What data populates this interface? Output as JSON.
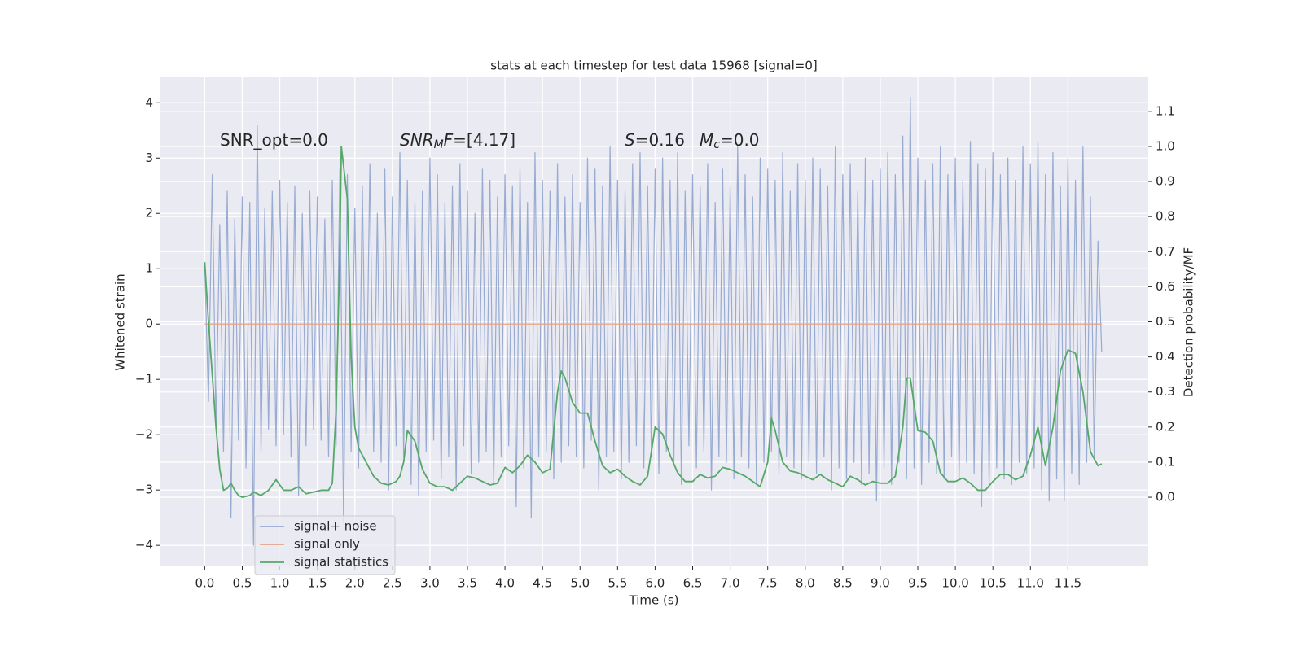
{
  "chart_data": {
    "type": "line",
    "title": "stats at each timestep for test data 15968 [signal=0]",
    "xlabel": "Time (s)",
    "ylabel": "Whitened strain",
    "y2label": "Detection probability/MF",
    "annotations": [
      {
        "parts": [
          {
            "text": "SNR_opt=0.0",
            "italic": false,
            "sub": false
          }
        ]
      },
      {
        "parts": [
          {
            "text": "SNR",
            "italic": true,
            "sub": false
          },
          {
            "text": "M",
            "italic": true,
            "sub": true
          },
          {
            "text": "F",
            "italic": true,
            "sub": false
          },
          {
            "text": "=[4.17]",
            "italic": false,
            "sub": false
          }
        ]
      },
      {
        "parts": [
          {
            "text": "S",
            "italic": true,
            "sub": false
          },
          {
            "text": "=0.16",
            "italic": false,
            "sub": false
          }
        ]
      },
      {
        "parts": [
          {
            "text": "M",
            "italic": true,
            "sub": false
          },
          {
            "text": "c",
            "italic": true,
            "sub": true
          },
          {
            "text": "=0.0",
            "italic": false,
            "sub": false
          }
        ]
      }
    ],
    "xlim": [
      -0.59,
      12.57
    ],
    "ylim": [
      -4.38,
      4.46
    ],
    "y2lim": [
      -0.197,
      1.197
    ],
    "xticks": [
      {
        "value": 0,
        "label": "0.0"
      },
      0.5,
      {
        "value": 1,
        "label": "1.0"
      },
      1.5,
      {
        "value": 2,
        "label": "2.0"
      },
      2.5,
      {
        "value": 3,
        "label": "3.0"
      },
      3.5,
      {
        "value": 4,
        "label": "4.0"
      },
      4.5,
      {
        "value": 5,
        "label": "5.0"
      },
      5.5,
      {
        "value": 6,
        "label": "6.0"
      },
      6.5,
      {
        "value": 7,
        "label": "7.0"
      },
      7.5,
      {
        "value": 8,
        "label": "8.0"
      },
      8.5,
      {
        "value": 9,
        "label": "9.0"
      },
      9.5,
      {
        "value": 10,
        "label": "10.0"
      },
      10.5,
      {
        "value": 11,
        "label": "11.0"
      },
      11.5
    ],
    "yticks": [
      {
        "value": -4,
        "label": "−4"
      },
      {
        "value": -3,
        "label": "−3"
      },
      {
        "value": -2,
        "label": "−2"
      },
      {
        "value": -1,
        "label": "−1"
      },
      0,
      1,
      2,
      3,
      4
    ],
    "y2ticks": [
      {
        "value": 0,
        "label": "0.0"
      },
      0.1,
      0.2,
      0.3,
      0.4,
      0.5,
      0.6,
      0.7,
      0.8,
      0.9,
      {
        "value": 1,
        "label": "1.0"
      },
      1.1
    ],
    "grid": true,
    "legend": "lower left",
    "series": [
      {
        "name": "signal+ noise",
        "color": "#98abd1",
        "x": [
          0,
          0.05,
          0.1,
          0.15,
          0.2,
          0.25,
          0.3,
          0.35,
          0.4,
          0.45,
          0.5,
          0.55,
          0.6,
          0.65,
          0.7,
          0.75,
          0.8,
          0.85,
          0.9,
          0.95,
          1,
          1.05,
          1.1,
          1.15,
          1.2,
          1.25,
          1.3,
          1.35,
          1.4,
          1.45,
          1.5,
          1.55,
          1.6,
          1.65,
          1.7,
          1.75,
          1.8,
          1.85,
          1.9,
          1.95,
          2,
          2.05,
          2.1,
          2.15,
          2.2,
          2.25,
          2.3,
          2.35,
          2.4,
          2.45,
          2.5,
          2.55,
          2.6,
          2.65,
          2.7,
          2.75,
          2.8,
          2.85,
          2.9,
          2.95,
          3,
          3.05,
          3.1,
          3.15,
          3.2,
          3.25,
          3.3,
          3.35,
          3.4,
          3.45,
          3.5,
          3.55,
          3.6,
          3.65,
          3.7,
          3.75,
          3.8,
          3.85,
          3.9,
          3.95,
          4,
          4.05,
          4.1,
          4.15,
          4.2,
          4.25,
          4.3,
          4.35,
          4.4,
          4.45,
          4.5,
          4.55,
          4.6,
          4.65,
          4.7,
          4.75,
          4.8,
          4.85,
          4.9,
          4.95,
          5,
          5.05,
          5.1,
          5.15,
          5.2,
          5.25,
          5.3,
          5.35,
          5.4,
          5.45,
          5.5,
          5.55,
          5.6,
          5.65,
          5.7,
          5.75,
          5.8,
          5.85,
          5.9,
          5.95,
          6,
          6.05,
          6.1,
          6.15,
          6.2,
          6.25,
          6.3,
          6.35,
          6.4,
          6.45,
          6.5,
          6.55,
          6.6,
          6.65,
          6.7,
          6.75,
          6.8,
          6.85,
          6.9,
          6.95,
          7,
          7.05,
          7.1,
          7.15,
          7.2,
          7.25,
          7.3,
          7.35,
          7.4,
          7.45,
          7.5,
          7.55,
          7.6,
          7.65,
          7.7,
          7.75,
          7.8,
          7.85,
          7.9,
          7.95,
          8,
          8.05,
          8.1,
          8.15,
          8.2,
          8.25,
          8.3,
          8.35,
          8.4,
          8.45,
          8.5,
          8.55,
          8.6,
          8.65,
          8.7,
          8.75,
          8.8,
          8.85,
          8.9,
          8.95,
          9,
          9.05,
          9.1,
          9.15,
          9.2,
          9.25,
          9.3,
          9.35,
          9.4,
          9.45,
          9.5,
          9.55,
          9.6,
          9.65,
          9.7,
          9.75,
          9.8,
          9.85,
          9.9,
          9.95,
          10,
          10.05,
          10.1,
          10.15,
          10.2,
          10.25,
          10.3,
          10.35,
          10.4,
          10.45,
          10.5,
          10.55,
          10.6,
          10.65,
          10.7,
          10.75,
          10.8,
          10.85,
          10.9,
          10.95,
          11,
          11.05,
          11.1,
          11.15,
          11.2,
          11.25,
          11.3,
          11.35,
          11.4,
          11.45,
          11.5,
          11.55,
          11.6,
          11.65,
          11.7,
          11.75,
          11.8,
          11.85,
          11.9,
          11.95
        ],
        "values": [
          1.1,
          -1.4,
          2.7,
          -1.9,
          1.8,
          -2.3,
          2.4,
          -3.5,
          1.9,
          -2.1,
          2.3,
          -2.6,
          2.2,
          -4.0,
          3.6,
          -2.3,
          2.1,
          -1.9,
          2.4,
          -2.2,
          2.6,
          -2.0,
          2.2,
          -2.4,
          2.5,
          -3.1,
          2.0,
          -2.2,
          2.4,
          -1.9,
          2.3,
          -2.1,
          1.9,
          -2.4,
          2.6,
          -2.2,
          2.8,
          -3.6,
          2.7,
          -2.3,
          2.1,
          -2.6,
          2.5,
          -2.0,
          2.9,
          -2.3,
          2.0,
          -2.5,
          2.8,
          -3.0,
          2.3,
          -2.2,
          3.1,
          -2.4,
          2.6,
          -2.9,
          2.2,
          -3.1,
          2.4,
          -2.3,
          3.0,
          -2.1,
          2.7,
          -2.8,
          2.2,
          -2.4,
          2.5,
          -3.0,
          2.9,
          -2.2,
          2.4,
          -2.7,
          2.0,
          -2.5,
          2.8,
          -2.3,
          2.6,
          -2.9,
          2.3,
          -2.4,
          2.7,
          -2.2,
          2.5,
          -3.3,
          2.8,
          -2.6,
          2.2,
          -3.5,
          3.1,
          -2.4,
          2.6,
          -2.3,
          2.4,
          -2.8,
          2.9,
          -2.5,
          2.3,
          -2.2,
          2.7,
          -2.4,
          2.2,
          -2.6,
          3.0,
          -2.1,
          2.8,
          -3.0,
          2.5,
          -2.4,
          3.2,
          -2.3,
          2.6,
          -2.8,
          2.4,
          -2.5,
          2.9,
          -2.2,
          3.1,
          -2.6,
          2.5,
          -2.4,
          2.8,
          -2.7,
          3.0,
          -2.3,
          2.6,
          -2.5,
          3.1,
          -2.9,
          2.4,
          -2.2,
          2.7,
          -2.6,
          2.5,
          -2.3,
          2.9,
          -3.0,
          2.2,
          -2.4,
          2.8,
          -2.5,
          2.5,
          -2.8,
          3.2,
          -2.4,
          2.7,
          -2.6,
          2.3,
          -2.9,
          3.0,
          -2.5,
          2.8,
          -2.3,
          2.6,
          -2.7,
          3.1,
          -2.4,
          2.4,
          -2.6,
          2.9,
          -2.8,
          2.6,
          -2.5,
          3.0,
          -2.7,
          2.8,
          -2.4,
          2.5,
          -3.0,
          3.2,
          -2.6,
          2.7,
          -2.8,
          2.9,
          -2.5,
          2.4,
          -2.9,
          3.0,
          -2.7,
          2.6,
          -3.2,
          2.8,
          -2.6,
          3.1,
          -2.9,
          2.7,
          -2.5,
          3.4,
          -2.8,
          4.1,
          -2.6,
          3.0,
          -2.9,
          2.6,
          -2.5,
          2.9,
          -2.7,
          3.2,
          -2.8,
          2.7,
          -2.4,
          3.0,
          -2.8,
          2.6,
          -2.5,
          3.3,
          -2.7,
          2.9,
          -3.3,
          2.8,
          -2.9,
          3.1,
          -2.6,
          2.7,
          -2.8,
          3.0,
          -2.9,
          2.6,
          -2.5,
          3.2,
          -2.7,
          2.9,
          -2.6,
          3.3,
          -3.0,
          2.7,
          -3.2,
          3.1,
          -2.8,
          2.5,
          -3.2,
          3.0,
          -2.7,
          2.6,
          -2.9,
          3.2,
          -2.5,
          2.3,
          -2.4,
          1.5,
          -0.5
        ]
      },
      {
        "name": "signal only",
        "color": "#e6a385",
        "x": [
          0,
          11.95
        ],
        "values": [
          0,
          0
        ]
      },
      {
        "name": "signal statistics",
        "color": "#55a868",
        "axis": "y2",
        "x": [
          0,
          0.05,
          0.1,
          0.15,
          0.2,
          0.25,
          0.3,
          0.35,
          0.4,
          0.45,
          0.5,
          0.6,
          0.65,
          0.75,
          0.85,
          0.95,
          1.05,
          1.15,
          1.25,
          1.35,
          1.45,
          1.55,
          1.65,
          1.7,
          1.75,
          1.8,
          1.82,
          1.9,
          1.95,
          2.0,
          2.05,
          2.15,
          2.25,
          2.35,
          2.45,
          2.55,
          2.6,
          2.65,
          2.7,
          2.8,
          2.9,
          3.0,
          3.1,
          3.2,
          3.3,
          3.4,
          3.5,
          3.6,
          3.7,
          3.8,
          3.9,
          4.0,
          4.1,
          4.2,
          4.3,
          4.4,
          4.5,
          4.6,
          4.7,
          4.75,
          4.8,
          4.9,
          5.0,
          5.1,
          5.2,
          5.3,
          5.4,
          5.5,
          5.6,
          5.7,
          5.8,
          5.9,
          6.0,
          6.1,
          6.2,
          6.3,
          6.4,
          6.5,
          6.6,
          6.7,
          6.8,
          6.9,
          7.0,
          7.1,
          7.2,
          7.3,
          7.4,
          7.5,
          7.55,
          7.6,
          7.7,
          7.8,
          7.9,
          8.0,
          8.1,
          8.2,
          8.3,
          8.4,
          8.5,
          8.6,
          8.7,
          8.8,
          8.9,
          9.0,
          9.1,
          9.2,
          9.3,
          9.35,
          9.4,
          9.5,
          9.6,
          9.7,
          9.8,
          9.9,
          10.0,
          10.1,
          10.2,
          10.3,
          10.4,
          10.5,
          10.6,
          10.7,
          10.8,
          10.9,
          11.0,
          11.1,
          11.2,
          11.3,
          11.4,
          11.5,
          11.6,
          11.7,
          11.8,
          11.9,
          11.95
        ],
        "values": [
          0.67,
          0.5,
          0.35,
          0.2,
          0.08,
          0.02,
          0.025,
          0.04,
          0.02,
          0.005,
          0.0,
          0.005,
          0.015,
          0.005,
          0.02,
          0.05,
          0.02,
          0.02,
          0.03,
          0.01,
          0.015,
          0.02,
          0.02,
          0.04,
          0.25,
          0.7,
          1.0,
          0.85,
          0.4,
          0.2,
          0.14,
          0.1,
          0.06,
          0.04,
          0.035,
          0.045,
          0.06,
          0.1,
          0.19,
          0.16,
          0.08,
          0.04,
          0.03,
          0.03,
          0.02,
          0.04,
          0.06,
          0.055,
          0.045,
          0.035,
          0.04,
          0.085,
          0.07,
          0.09,
          0.12,
          0.1,
          0.07,
          0.08,
          0.3,
          0.36,
          0.34,
          0.27,
          0.24,
          0.24,
          0.16,
          0.09,
          0.07,
          0.08,
          0.06,
          0.045,
          0.035,
          0.06,
          0.2,
          0.18,
          0.12,
          0.07,
          0.045,
          0.045,
          0.065,
          0.055,
          0.06,
          0.085,
          0.08,
          0.07,
          0.06,
          0.045,
          0.03,
          0.1,
          0.225,
          0.19,
          0.1,
          0.075,
          0.07,
          0.06,
          0.05,
          0.065,
          0.05,
          0.04,
          0.03,
          0.06,
          0.05,
          0.035,
          0.045,
          0.04,
          0.04,
          0.06,
          0.2,
          0.34,
          0.34,
          0.19,
          0.185,
          0.16,
          0.07,
          0.045,
          0.045,
          0.055,
          0.04,
          0.02,
          0.02,
          0.045,
          0.065,
          0.065,
          0.05,
          0.06,
          0.12,
          0.2,
          0.09,
          0.2,
          0.36,
          0.42,
          0.41,
          0.3,
          0.13,
          0.09,
          0.095
        ]
      }
    ]
  }
}
